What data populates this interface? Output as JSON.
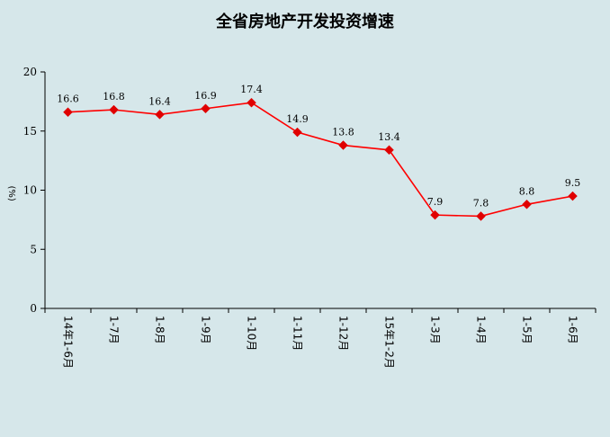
{
  "chart_data": {
    "type": "line",
    "title": "全省房地产开发投资增速",
    "ylabel": "(%)",
    "xlabel": "",
    "ylim": [
      0,
      20
    ],
    "yticks": [
      0,
      5,
      10,
      15,
      20
    ],
    "grid": false,
    "legend": "none",
    "categories": [
      "14年1-6月",
      "1-7月",
      "1-8月",
      "1-9月",
      "1-10月",
      "1-11月",
      "1-12月",
      "15年1-2月",
      "1-3月",
      "1-4月",
      "1-5月",
      "1-6月"
    ],
    "series": [
      {
        "values": [
          16.6,
          16.8,
          16.4,
          16.9,
          17.4,
          14.9,
          13.8,
          13.4,
          7.9,
          7.8,
          8.8,
          9.5
        ],
        "labels": [
          "16.6",
          "16.8",
          "16.4",
          "16.9",
          "17.4",
          "14.9",
          "13.8",
          "13.4",
          "7.9",
          "7.8",
          "8.8",
          "9.5"
        ],
        "color": "#ff0000",
        "marker_color": "#e00000"
      }
    ]
  }
}
